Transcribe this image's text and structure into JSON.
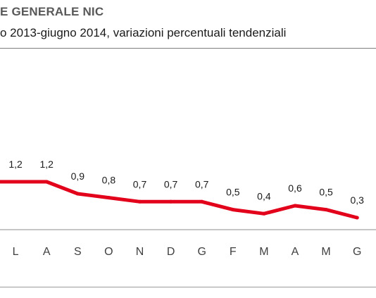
{
  "header": {
    "title": "E GENERALE NIC",
    "subtitle": "o 2013-giugno 2014, variazioni percentuali tendenziali"
  },
  "colors": {
    "series": "#e3001b",
    "axis": "#8c8c8c"
  },
  "chart_data": {
    "type": "line",
    "title": "E GENERALE NIC",
    "subtitle": "o 2013-giugno 2014, variazioni percentuali tendenziali",
    "categories": [
      "",
      "L",
      "A",
      "S",
      "O",
      "N",
      "D",
      "G",
      "F",
      "M",
      "A",
      "M",
      "G"
    ],
    "values": [
      1.2,
      1.2,
      1.2,
      0.9,
      0.8,
      0.7,
      0.7,
      0.7,
      0.5,
      0.4,
      0.6,
      0.5,
      0.3
    ],
    "data_labels": [
      "",
      "1,2",
      "1,2",
      "0,9",
      "0,8",
      "0,7",
      "0,7",
      "0,7",
      "0,5",
      "0,4",
      "0,6",
      "0,5",
      "0,3"
    ],
    "ylim": [
      0,
      2.85
    ],
    "grid": false,
    "legend": "none"
  }
}
